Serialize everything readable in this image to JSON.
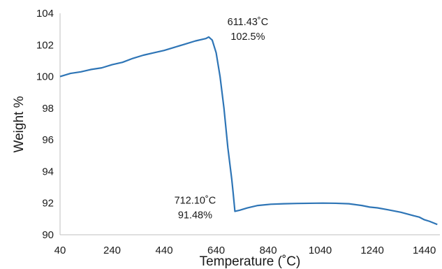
{
  "chart_data": {
    "type": "line",
    "title": "",
    "xlabel": "Temperature (˚C)",
    "ylabel": "Weight %",
    "xlim": [
      40,
      1500
    ],
    "ylim": [
      90,
      104
    ],
    "x_ticks": [
      "40",
      "240",
      "440",
      "640",
      "840",
      "1040",
      "1240",
      "1440"
    ],
    "y_ticks": [
      "90",
      "92",
      "94",
      "96",
      "98",
      "100",
      "102",
      "104"
    ],
    "grid": false,
    "legend": "none",
    "series": [
      {
        "color": "#2e75b6",
        "x": [
          40,
          80,
          120,
          160,
          200,
          240,
          280,
          320,
          360,
          400,
          440,
          480,
          520,
          560,
          600,
          611.43,
          625,
          640,
          655,
          670,
          685,
          700,
          705,
          712.1,
          730,
          760,
          800,
          850,
          900,
          950,
          1000,
          1050,
          1100,
          1150,
          1200,
          1230,
          1260,
          1300,
          1350,
          1400,
          1420,
          1440,
          1460,
          1490
        ],
        "y": [
          100.0,
          100.2,
          100.3,
          100.45,
          100.55,
          100.75,
          100.9,
          101.15,
          101.35,
          101.5,
          101.65,
          101.85,
          102.05,
          102.25,
          102.4,
          102.5,
          102.3,
          101.5,
          100.0,
          98.0,
          95.5,
          93.5,
          92.7,
          91.48,
          91.55,
          91.7,
          91.85,
          91.93,
          91.96,
          91.98,
          91.99,
          92.0,
          91.99,
          91.96,
          91.85,
          91.75,
          91.7,
          91.58,
          91.42,
          91.2,
          91.12,
          90.95,
          90.85,
          90.65
        ]
      }
    ],
    "annotations": [
      {
        "x": 611.43,
        "y": 102.5,
        "lines": [
          "611.43˚C",
          "102.5%"
        ]
      },
      {
        "x": 712.1,
        "y": 91.48,
        "lines": [
          "712.10˚C",
          "91.48%"
        ]
      }
    ]
  }
}
